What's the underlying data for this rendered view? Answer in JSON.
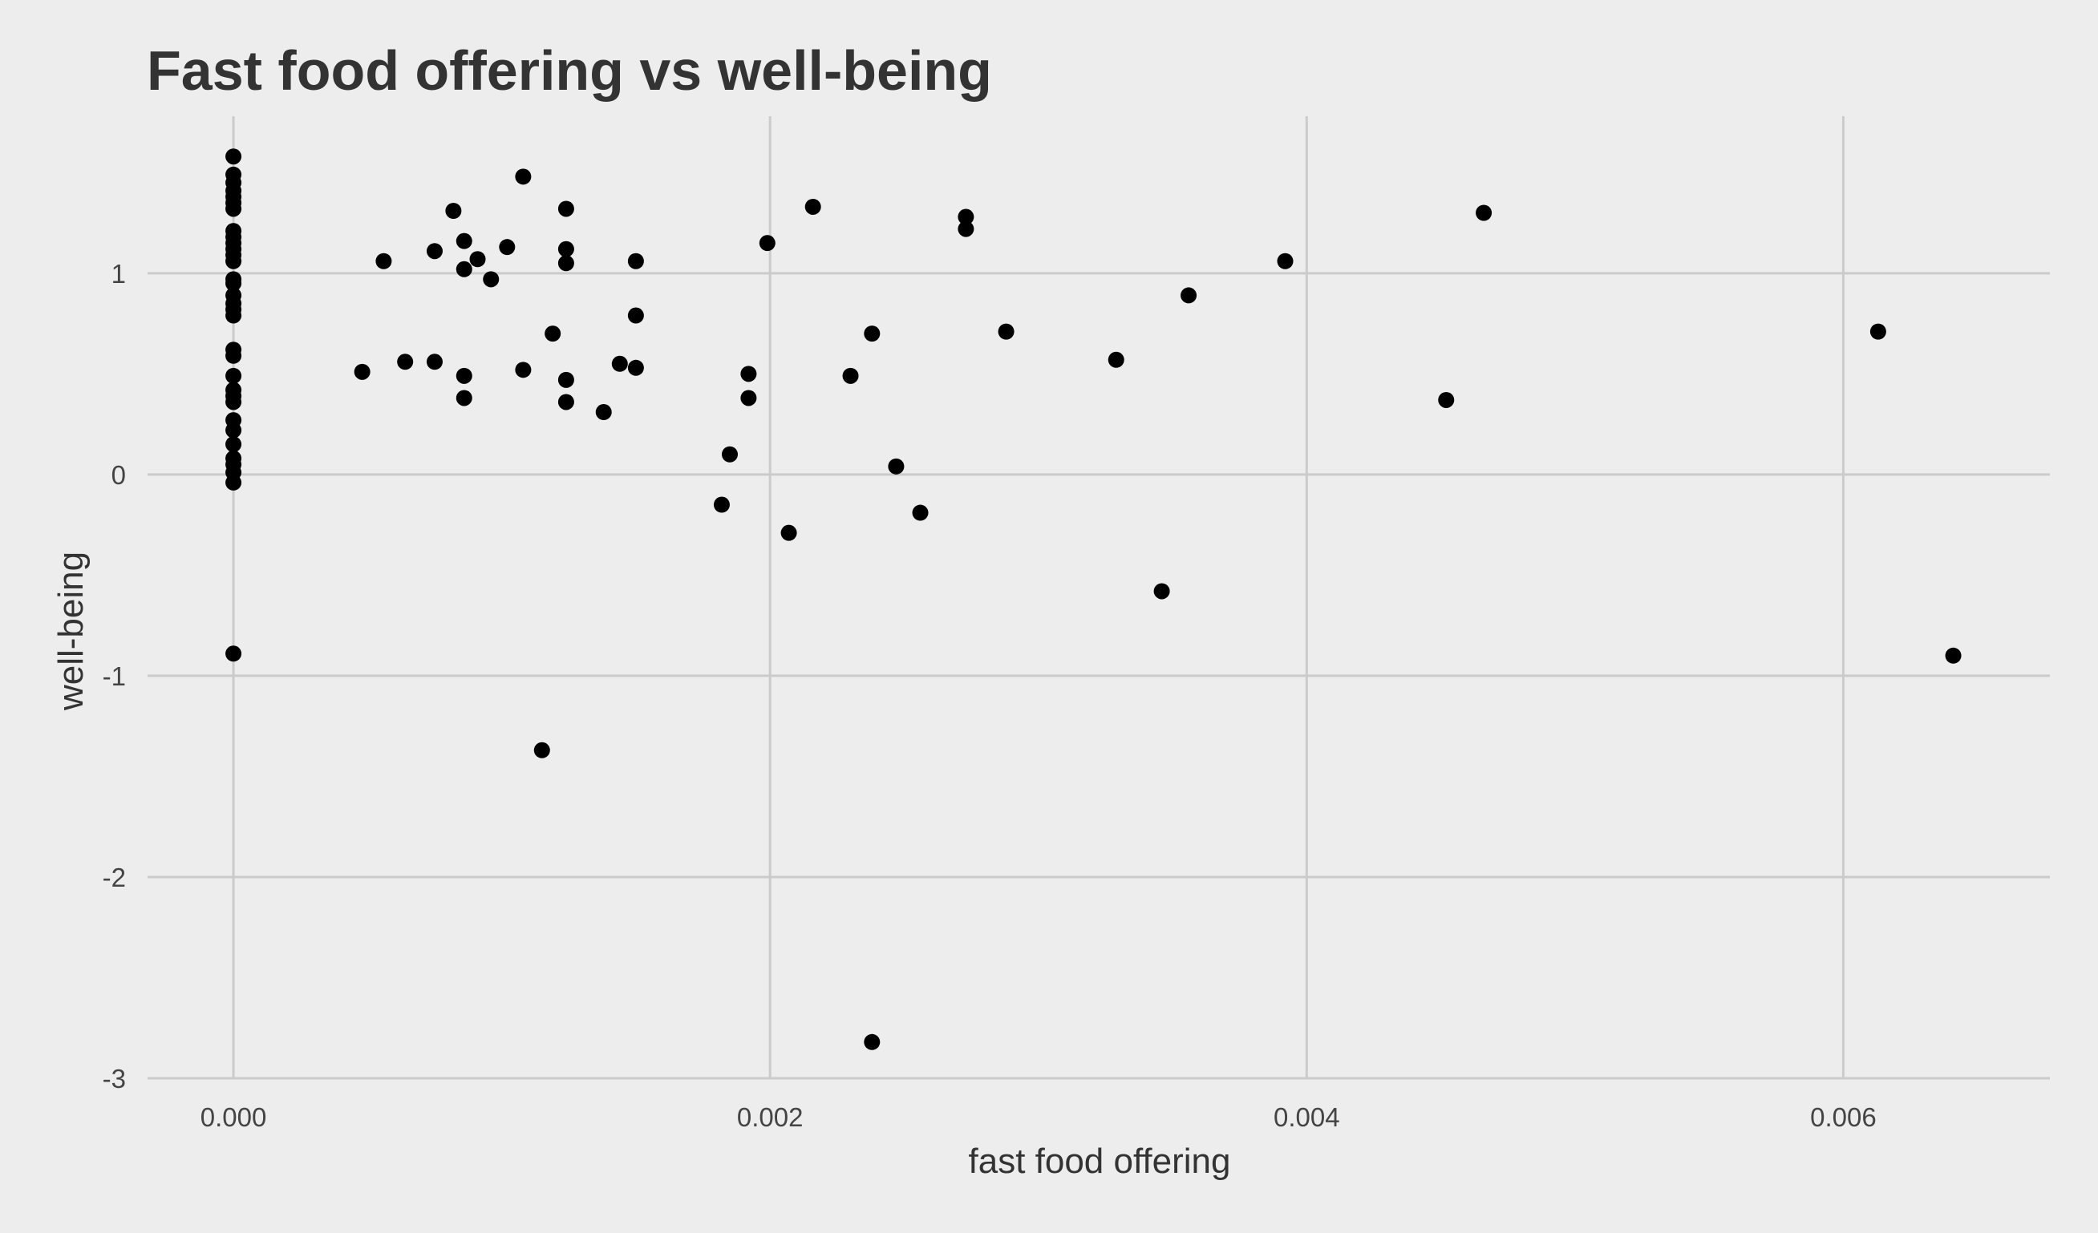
{
  "chart_data": {
    "type": "scatter",
    "title": "Fast food offering vs well-being",
    "xlabel": "fast food offering",
    "ylabel": "well-being",
    "xlim": [
      -0.00032,
      0.00677
    ],
    "ylim": [
      -3.0,
      1.78
    ],
    "x_ticks": [
      0.0,
      0.002,
      0.004,
      0.006
    ],
    "x_tick_labels": [
      "0.000",
      "0.002",
      "0.004",
      "0.006"
    ],
    "y_ticks": [
      -3,
      -2,
      -1,
      0,
      1
    ],
    "y_tick_labels": [
      "-3",
      "-2",
      "-1",
      "0",
      "1"
    ],
    "grid": true,
    "legend": "none",
    "colors": {
      "background": "#ededed",
      "grid": "#cbcbcb",
      "points": "#000000",
      "text": "#333333"
    },
    "points": [
      [
        0.0,
        1.58
      ],
      [
        0.0,
        1.49
      ],
      [
        0.0,
        1.45
      ],
      [
        0.0,
        1.41
      ],
      [
        0.0,
        1.38
      ],
      [
        0.0,
        1.35
      ],
      [
        0.0,
        1.32
      ],
      [
        0.0,
        1.21
      ],
      [
        0.0,
        1.18
      ],
      [
        0.0,
        1.15
      ],
      [
        0.0,
        1.12
      ],
      [
        0.0,
        1.09
      ],
      [
        0.0,
        1.06
      ],
      [
        0.0,
        0.97
      ],
      [
        0.0,
        0.95
      ],
      [
        0.0,
        0.89
      ],
      [
        0.0,
        0.85
      ],
      [
        0.0,
        0.82
      ],
      [
        0.0,
        0.79
      ],
      [
        0.0,
        0.62
      ],
      [
        0.0,
        0.59
      ],
      [
        0.0,
        0.49
      ],
      [
        0.0,
        0.42
      ],
      [
        0.0,
        0.39
      ],
      [
        0.0,
        0.36
      ],
      [
        0.0,
        0.27
      ],
      [
        0.0,
        0.22
      ],
      [
        0.0,
        0.15
      ],
      [
        0.0,
        0.08
      ],
      [
        0.0,
        0.05
      ],
      [
        0.0,
        0.01
      ],
      [
        0.0,
        -0.04
      ],
      [
        0.0,
        -0.89
      ],
      [
        0.00048,
        0.51
      ],
      [
        0.00056,
        1.06
      ],
      [
        0.00064,
        0.56
      ],
      [
        0.00075,
        1.11
      ],
      [
        0.00075,
        0.56
      ],
      [
        0.00082,
        1.31
      ],
      [
        0.00086,
        1.16
      ],
      [
        0.00086,
        1.02
      ],
      [
        0.00086,
        0.49
      ],
      [
        0.00086,
        0.38
      ],
      [
        0.00091,
        1.07
      ],
      [
        0.00096,
        0.97
      ],
      [
        0.00102,
        1.13
      ],
      [
        0.00108,
        1.48
      ],
      [
        0.00108,
        0.52
      ],
      [
        0.00115,
        -1.37
      ],
      [
        0.00119,
        0.7
      ],
      [
        0.00124,
        1.32
      ],
      [
        0.00124,
        1.12
      ],
      [
        0.00124,
        1.05
      ],
      [
        0.00124,
        0.47
      ],
      [
        0.00124,
        0.36
      ],
      [
        0.00138,
        0.31
      ],
      [
        0.00144,
        0.55
      ],
      [
        0.0015,
        1.06
      ],
      [
        0.0015,
        0.79
      ],
      [
        0.0015,
        0.53
      ],
      [
        0.00182,
        -0.15
      ],
      [
        0.00185,
        0.1
      ],
      [
        0.00192,
        0.5
      ],
      [
        0.00192,
        0.38
      ],
      [
        0.00199,
        1.15
      ],
      [
        0.00207,
        -0.29
      ],
      [
        0.00216,
        1.33
      ],
      [
        0.0023,
        0.49
      ],
      [
        0.00238,
        0.7
      ],
      [
        0.00238,
        -2.82
      ],
      [
        0.00247,
        0.04
      ],
      [
        0.00256,
        -0.19
      ],
      [
        0.00273,
        1.28
      ],
      [
        0.00273,
        1.22
      ],
      [
        0.00288,
        0.71
      ],
      [
        0.00329,
        0.57
      ],
      [
        0.00346,
        -0.58
      ],
      [
        0.00356,
        0.89
      ],
      [
        0.00392,
        1.06
      ],
      [
        0.00452,
        0.37
      ],
      [
        0.00466,
        1.3
      ],
      [
        0.00613,
        0.71
      ],
      [
        0.00641,
        -0.9
      ]
    ]
  }
}
